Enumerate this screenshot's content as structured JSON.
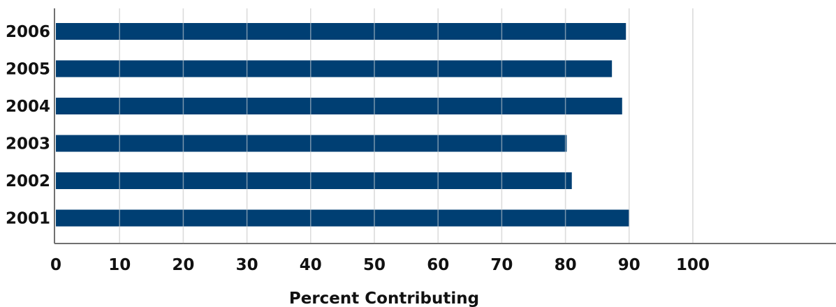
{
  "chart_data": {
    "type": "bar",
    "orientation": "horizontal",
    "categories": [
      "2006",
      "2005",
      "2004",
      "2003",
      "2002",
      "2001"
    ],
    "values": [
      89.5,
      87.3,
      88.9,
      80.2,
      81.0,
      90.0
    ],
    "xlabel": "Percent Contributing",
    "ylabel": "",
    "xlim": [
      0,
      100
    ],
    "xticks": [
      "0",
      "10",
      "20",
      "30",
      "40",
      "50",
      "60",
      "70",
      "80",
      "90",
      "100"
    ],
    "grid": true,
    "legend": "none",
    "bar_color": "#003f73",
    "grid_color": "#dcdcdc",
    "axis_color": "#707070"
  }
}
